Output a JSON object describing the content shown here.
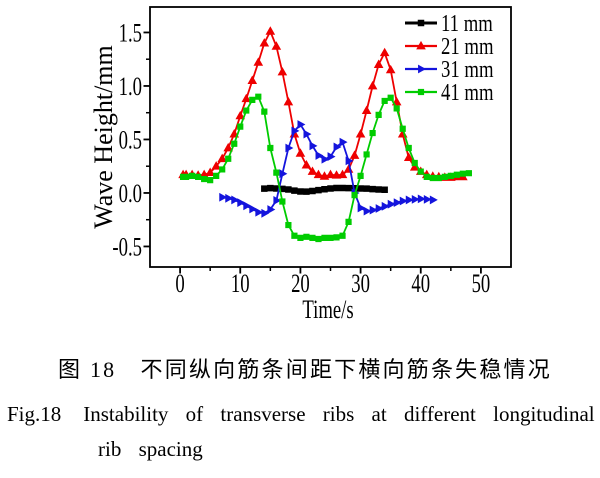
{
  "chart_data": {
    "type": "line",
    "title": "",
    "xlabel": "Time/s",
    "ylabel": "Wave Height/mm",
    "xlim": [
      -5,
      55
    ],
    "ylim": [
      -0.692,
      1.738
    ],
    "xticks": [
      0,
      10,
      20,
      30,
      40,
      50
    ],
    "yticks": [
      -0.5,
      0.0,
      0.5,
      1.0,
      1.5
    ],
    "x_minor_step": 5,
    "y_minor_step": 0.25,
    "grid": false,
    "legend_position": "top-right",
    "series": [
      {
        "name": "11 mm",
        "color": "#000000",
        "marker": "square",
        "marker_size": 6.5,
        "line_width": 2.6,
        "points": [
          [
            14,
            0.04
          ],
          [
            15,
            0.045
          ],
          [
            16,
            0.042
          ],
          [
            17,
            0.038
          ],
          [
            18,
            0.032
          ],
          [
            19,
            0.022
          ],
          [
            20,
            0.014
          ],
          [
            21,
            0.012
          ],
          [
            22,
            0.018
          ],
          [
            23,
            0.026
          ],
          [
            24,
            0.035
          ],
          [
            25,
            0.042
          ],
          [
            26,
            0.046
          ],
          [
            27,
            0.046
          ],
          [
            28,
            0.045
          ],
          [
            29,
            0.044
          ],
          [
            30,
            0.042
          ],
          [
            31,
            0.04
          ],
          [
            32,
            0.036
          ],
          [
            33,
            0.032
          ],
          [
            34,
            0.03
          ]
        ]
      },
      {
        "name": "21 mm",
        "color": "#ee0000",
        "marker": "triangle-up",
        "marker_size": 9,
        "line_width": 1.8,
        "points": [
          [
            0.5,
            0.17
          ],
          [
            1,
            0.17
          ],
          [
            2,
            0.17
          ],
          [
            3,
            0.165
          ],
          [
            4,
            0.17
          ],
          [
            5,
            0.19
          ],
          [
            6,
            0.25
          ],
          [
            7,
            0.32
          ],
          [
            8,
            0.42
          ],
          [
            9,
            0.55
          ],
          [
            10,
            0.72
          ],
          [
            11,
            0.88
          ],
          [
            12,
            1.05
          ],
          [
            13,
            1.22
          ],
          [
            14,
            1.4
          ],
          [
            15,
            1.51
          ],
          [
            16,
            1.37
          ],
          [
            17,
            1.13
          ],
          [
            18,
            0.85
          ],
          [
            19,
            0.55
          ],
          [
            20,
            0.37
          ],
          [
            21,
            0.26
          ],
          [
            22,
            0.2
          ],
          [
            23,
            0.17
          ],
          [
            24,
            0.155
          ],
          [
            25,
            0.17
          ],
          [
            26,
            0.165
          ],
          [
            27,
            0.17
          ],
          [
            28,
            0.22
          ],
          [
            29,
            0.35
          ],
          [
            30,
            0.55
          ],
          [
            31,
            0.77
          ],
          [
            32,
            1.0
          ],
          [
            33,
            1.2
          ],
          [
            34,
            1.31
          ],
          [
            35,
            1.15
          ],
          [
            36,
            0.85
          ],
          [
            37,
            0.55
          ],
          [
            38,
            0.33
          ],
          [
            39,
            0.24
          ],
          [
            40,
            0.2
          ],
          [
            41,
            0.17
          ],
          [
            42,
            0.155
          ],
          [
            43,
            0.15
          ],
          [
            44,
            0.145
          ],
          [
            45,
            0.145
          ],
          [
            46,
            0.15
          ],
          [
            47,
            0.15
          ]
        ]
      },
      {
        "name": "31 mm",
        "color": "#1414dd",
        "marker": "triangle-right",
        "marker_size": 8.4,
        "line_width": 1.8,
        "points": [
          [
            7,
            -0.04
          ],
          [
            8,
            -0.05
          ],
          [
            9,
            -0.065
          ],
          [
            10,
            -0.09
          ],
          [
            11,
            -0.12
          ],
          [
            12,
            -0.15
          ],
          [
            13,
            -0.18
          ],
          [
            14,
            -0.19
          ],
          [
            15,
            -0.155
          ],
          [
            16,
            -0.07
          ],
          [
            17,
            0.18
          ],
          [
            18,
            0.42
          ],
          [
            19,
            0.58
          ],
          [
            20,
            0.64
          ],
          [
            21,
            0.55
          ],
          [
            22,
            0.44
          ],
          [
            23,
            0.35
          ],
          [
            24,
            0.315
          ],
          [
            25,
            0.34
          ],
          [
            26,
            0.43
          ],
          [
            27,
            0.475
          ],
          [
            28,
            0.3
          ],
          [
            29,
            0.0
          ],
          [
            30,
            -0.14
          ],
          [
            31,
            -0.17
          ],
          [
            32,
            -0.16
          ],
          [
            33,
            -0.145
          ],
          [
            34,
            -0.125
          ],
          [
            35,
            -0.105
          ],
          [
            36,
            -0.09
          ],
          [
            37,
            -0.075
          ],
          [
            38,
            -0.065
          ],
          [
            39,
            -0.06
          ],
          [
            40,
            -0.055
          ],
          [
            41,
            -0.06
          ],
          [
            42,
            -0.065
          ]
        ]
      },
      {
        "name": "41 mm",
        "color": "#00cc00",
        "marker": "square",
        "marker_size": 6.2,
        "line_width": 1.8,
        "points": [
          [
            0.5,
            0.15
          ],
          [
            1,
            0.15
          ],
          [
            2,
            0.16
          ],
          [
            3,
            0.15
          ],
          [
            4,
            0.13
          ],
          [
            5,
            0.12
          ],
          [
            6,
            0.16
          ],
          [
            7,
            0.22
          ],
          [
            8,
            0.32
          ],
          [
            9,
            0.46
          ],
          [
            10,
            0.62
          ],
          [
            11,
            0.77
          ],
          [
            12,
            0.87
          ],
          [
            13,
            0.9
          ],
          [
            14,
            0.76
          ],
          [
            15,
            0.42
          ],
          [
            16,
            0.19
          ],
          [
            17,
            -0.08
          ],
          [
            18,
            -0.3
          ],
          [
            19,
            -0.4
          ],
          [
            20,
            -0.42
          ],
          [
            21,
            -0.41
          ],
          [
            22,
            -0.42
          ],
          [
            23,
            -0.43
          ],
          [
            24,
            -0.42
          ],
          [
            25,
            -0.42
          ],
          [
            26,
            -0.415
          ],
          [
            27,
            -0.4
          ],
          [
            28,
            -0.27
          ],
          [
            29,
            -0.02
          ],
          [
            30,
            0.16
          ],
          [
            31,
            0.36
          ],
          [
            32,
            0.56
          ],
          [
            33,
            0.73
          ],
          [
            34,
            0.86
          ],
          [
            35,
            0.89
          ],
          [
            36,
            0.79
          ],
          [
            37,
            0.6
          ],
          [
            38,
            0.42
          ],
          [
            39,
            0.28
          ],
          [
            40,
            0.2
          ],
          [
            41,
            0.15
          ],
          [
            42,
            0.14
          ],
          [
            43,
            0.14
          ],
          [
            44,
            0.15
          ],
          [
            45,
            0.16
          ],
          [
            46,
            0.17
          ],
          [
            47,
            0.18
          ],
          [
            48,
            0.185
          ]
        ]
      }
    ]
  },
  "captions": {
    "zh": "图 18　不同纵向筋条间距下横向筋条失稳情况",
    "en_prefix": "Fig.18",
    "en_line1": "Instability of transverse ribs at different longitudinal",
    "en_line2": "rib spacing"
  }
}
